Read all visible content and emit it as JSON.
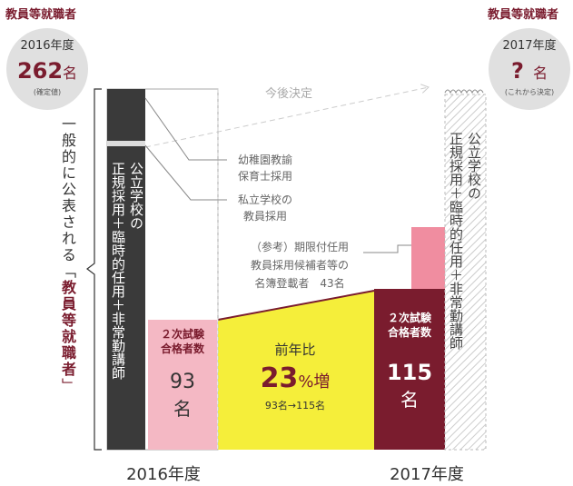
{
  "header": {
    "left_label": "教員等就職者",
    "right_label": "教員等就職者"
  },
  "left_circle": {
    "year": "2016年度",
    "number": "262",
    "unit": "名",
    "note": "(確定値)"
  },
  "right_circle": {
    "year": "2017年度",
    "number": "?",
    "unit": "名",
    "note": "(これから決定)"
  },
  "future_note": "今後決定",
  "bracket_text": {
    "before": "一般的に公表される「",
    "emphasis": "教員等就職者",
    "after": "」"
  },
  "column_2016": {
    "line1": "公立学校の",
    "line2": "正規採用＋臨時的任用＋非常勤講師"
  },
  "column_2017": {
    "line1": "公立学校の",
    "line2": "正規採用＋臨時的任用＋非常勤講師"
  },
  "kindergarten": {
    "line1": "幼稚園教諭",
    "line2": "保育士採用"
  },
  "private": {
    "line1": "私立学校の",
    "line2": "教員採用"
  },
  "reference": {
    "line1": "（参考）期限付任用",
    "line2": "教員採用候補者等の",
    "line3": "名簿登載者　43名"
  },
  "pass_2016": {
    "line1": "２次試験",
    "line2": "合格者数",
    "number": "93",
    "unit": "名"
  },
  "growth": {
    "label": "前年比",
    "number": "23",
    "unit": "%増",
    "detail": "93名→115名"
  },
  "pass_2017": {
    "line1": "２次試験",
    "line2": "合格者数",
    "number": "115",
    "unit": "名"
  },
  "years": [
    "2016年度",
    "2017年度"
  ]
}
